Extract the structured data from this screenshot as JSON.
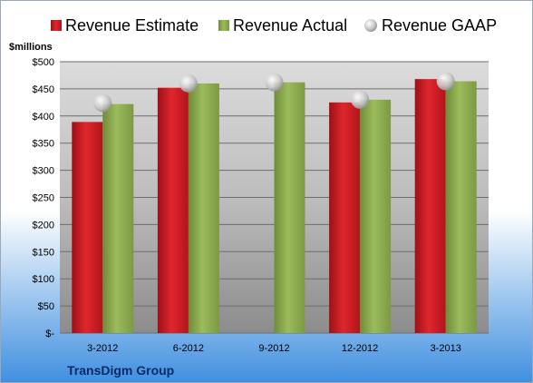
{
  "colors": {
    "estimate": "#cc1f26",
    "actual": "#8aa84e",
    "gaap": "#c8c8c8",
    "background_top": "#ffffff",
    "background_bottom": "#3f8fe0",
    "plot_top": "#d9d9d9",
    "plot_bottom": "#8a8a8a"
  },
  "chart_data": {
    "type": "bar",
    "title": "",
    "xlabel": "",
    "ylabel": "$millions",
    "company": "TransDigm Group",
    "categories": [
      "3-2012",
      "6-2012",
      "9-2012",
      "12-2012",
      "3-2013"
    ],
    "series": [
      {
        "name": "Revenue Estimate",
        "kind": "bar",
        "values": [
          389,
          452,
          null,
          425,
          468
        ]
      },
      {
        "name": "Revenue Actual",
        "kind": "bar",
        "values": [
          422,
          460,
          462,
          430,
          464
        ]
      },
      {
        "name": "Revenue GAAP",
        "kind": "marker",
        "values": [
          424,
          460,
          462,
          430,
          464
        ]
      }
    ],
    "ylim": [
      0,
      500
    ],
    "yticks": [
      0,
      50,
      100,
      150,
      200,
      250,
      300,
      350,
      400,
      450,
      500
    ],
    "ytick_labels": [
      "$-",
      "$50",
      "$100",
      "$150",
      "$200",
      "$250",
      "$300",
      "$350",
      "$400",
      "$450",
      "$500"
    ],
    "grid": true,
    "legend": "top"
  }
}
